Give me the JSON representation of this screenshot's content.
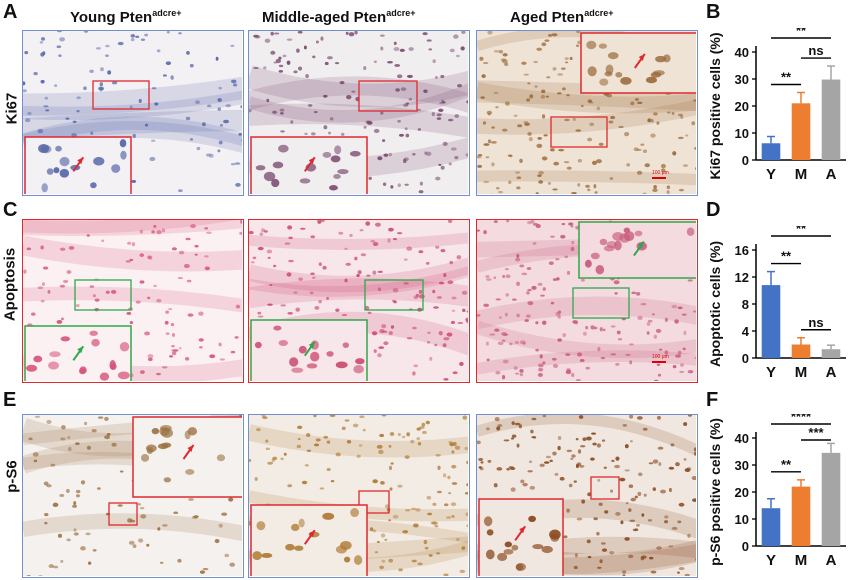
{
  "panel_letters": {
    "A": "A",
    "B": "B",
    "C": "C",
    "D": "D",
    "E": "E",
    "F": "F"
  },
  "column_headers": [
    {
      "main": "Young Pten",
      "sup": "adcre+"
    },
    {
      "main": "Middle-aged Pten",
      "sup": "adcre+"
    },
    {
      "main": "Aged Pten",
      "sup": "adcre+"
    }
  ],
  "row_labels": [
    "Ki67",
    "Apoptosis",
    "p-S6"
  ],
  "scale_bar_label": "100 μm",
  "colors": {
    "Y": "#4472c4",
    "M": "#ed7d31",
    "A": "#a5a5a5",
    "frame_blue": "#6f8fd0",
    "frame_red": "#e0292e",
    "frame_green": "#2ea84a"
  },
  "chart_data": [
    {
      "panel": "B",
      "type": "bar",
      "categories": [
        "Y",
        "M",
        "A"
      ],
      "values": [
        6.2,
        21,
        29.8
      ],
      "errors": [
        2.5,
        4,
        5
      ],
      "ylabel": "Ki67 positive cells (%)",
      "ylim": [
        0,
        40
      ],
      "yticks": [
        0,
        10,
        20,
        30,
        40
      ],
      "significance": [
        {
          "pair": [
            0,
            1
          ],
          "label": "**",
          "level": 0
        },
        {
          "pair": [
            1,
            2
          ],
          "label": "ns",
          "level": 0
        },
        {
          "pair": [
            0,
            2
          ],
          "label": "**",
          "level": 1
        }
      ]
    },
    {
      "panel": "D",
      "type": "bar",
      "categories": [
        "Y",
        "M",
        "A"
      ],
      "values": [
        10.8,
        2,
        1.3
      ],
      "errors": [
        2,
        1,
        0.6
      ],
      "ylabel": "Apoptotic cells (%)",
      "ylim": [
        0,
        16
      ],
      "yticks": [
        0,
        4,
        8,
        12,
        16
      ],
      "significance": [
        {
          "pair": [
            0,
            1
          ],
          "label": "**",
          "level": 0
        },
        {
          "pair": [
            1,
            2
          ],
          "label": "ns",
          "level": 0
        },
        {
          "pair": [
            0,
            2
          ],
          "label": "**",
          "level": 1
        }
      ]
    },
    {
      "panel": "F",
      "type": "bar",
      "categories": [
        "Y",
        "M",
        "A"
      ],
      "values": [
        14,
        22,
        34.5
      ],
      "errors": [
        3.5,
        2.5,
        3.5
      ],
      "ylabel": "p-S6 positive cells (%)",
      "ylim": [
        0,
        40
      ],
      "yticks": [
        0,
        10,
        20,
        30,
        40
      ],
      "significance": [
        {
          "pair": [
            0,
            1
          ],
          "label": "**",
          "level": 0
        },
        {
          "pair": [
            1,
            2
          ],
          "label": "***",
          "level": 0
        },
        {
          "pair": [
            0,
            2
          ],
          "label": "****",
          "level": 1
        }
      ]
    }
  ]
}
